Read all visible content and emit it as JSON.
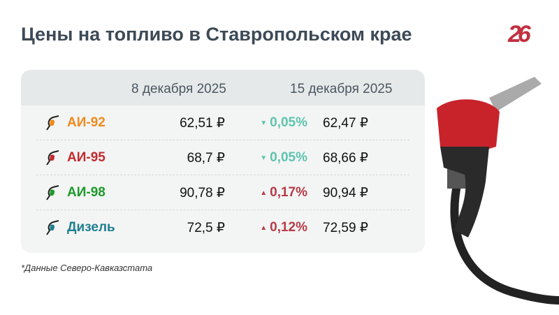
{
  "title": "Цены на топливо в Ставропольском крае",
  "logo": "26",
  "columns": [
    "8 декабря 2025",
    "15 декабря 2025"
  ],
  "rows": [
    {
      "fuel": "АИ-92",
      "color": "#f08a1c",
      "price1": "62,51 ₽",
      "change": "0,05%",
      "dir": "down",
      "price2": "62,47 ₽"
    },
    {
      "fuel": "АИ-95",
      "color": "#c42a2f",
      "price1": "68,7 ₽",
      "change": "0,05%",
      "dir": "down",
      "price2": "68,66 ₽"
    },
    {
      "fuel": "АИ-98",
      "color": "#1d9a2a",
      "price1": "90,78 ₽",
      "change": "0,17%",
      "dir": "up",
      "price2": "90,94 ₽"
    },
    {
      "fuel": "Дизель",
      "color": "#1f7f8f",
      "price1": "72,5 ₽",
      "change": "0,12%",
      "dir": "up",
      "price2": "72,59 ₽"
    }
  ],
  "colors": {
    "down": "#5ec4ae",
    "up": "#b83a48"
  },
  "note": "*Данные Северо-Кавказстата"
}
